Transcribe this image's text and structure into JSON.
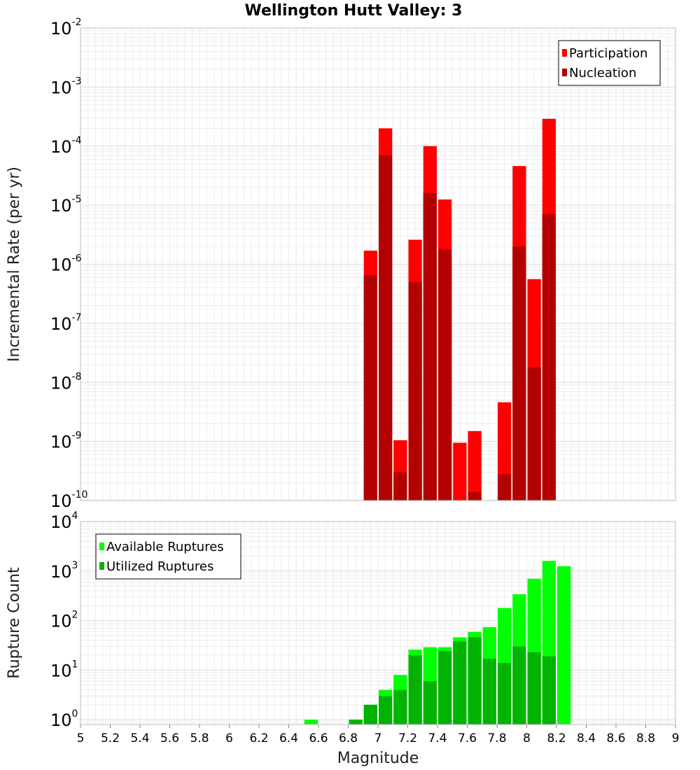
{
  "chart_data": {
    "title": "Wellington Hutt Valley: 3",
    "xlabel": "Magnitude",
    "xlim": [
      5,
      9
    ],
    "x_ticks": [
      "5",
      "5.2",
      "5.4",
      "5.6",
      "5.8",
      "6",
      "6.2",
      "6.4",
      "6.6",
      "6.8",
      "7",
      "7.2",
      "7.4",
      "7.6",
      "7.8",
      "8",
      "8.2",
      "8.4",
      "8.6",
      "8.8",
      "9"
    ],
    "bin_width": 0.1,
    "panels": [
      {
        "type": "bar",
        "ylabel": "Incremental Rate (per yr)",
        "yscale": "log",
        "ylim": [
          1e-10,
          0.01
        ],
        "y_tick_exponents": [
          "-10",
          "-9",
          "-8",
          "-7",
          "-6",
          "-5",
          "-4",
          "-3",
          "-2"
        ],
        "grid": true,
        "legend_position": "top-right",
        "series": [
          {
            "name": "Participation",
            "color": "#ff0000",
            "x": [
              6.95,
              7.05,
              7.15,
              7.25,
              7.35,
              7.45,
              7.55,
              7.65,
              7.85,
              7.95,
              8.05,
              8.15
            ],
            "values": [
              1.7e-06,
              0.0002,
              1.05e-09,
              2.6e-06,
              0.0001,
              1.25e-05,
              9.5e-10,
              1.5e-09,
              4.6e-09,
              4.6e-05,
              5.6e-07,
              0.00029
            ]
          },
          {
            "name": "Nucleation",
            "color": "#b30000",
            "x": [
              6.95,
              7.05,
              7.15,
              7.25,
              7.35,
              7.45,
              7.65,
              7.85,
              7.95,
              8.05,
              8.15
            ],
            "values": [
              6.5e-07,
              7e-05,
              3e-10,
              5e-07,
              1.6e-05,
              1.8e-06,
              1.4e-10,
              2.8e-10,
              2e-06,
              1.8e-08,
              7e-06
            ]
          }
        ]
      },
      {
        "type": "bar",
        "ylabel": "Rupture Count",
        "yscale": "log",
        "ylim": [
          0.8,
          10000
        ],
        "y_tick_exponents": [
          "0",
          "1",
          "2",
          "3",
          "4"
        ],
        "grid": true,
        "legend_position": "top-left",
        "series": [
          {
            "name": "Available Ruptures",
            "color": "#00ff00",
            "x": [
              6.55,
              6.85,
              6.95,
              7.05,
              7.15,
              7.25,
              7.35,
              7.45,
              7.55,
              7.65,
              7.75,
              7.85,
              7.95,
              8.05,
              8.15,
              8.25
            ],
            "values": [
              1,
              1,
              2,
              4,
              8,
              26,
              29,
              29,
              46,
              59,
              74,
              180,
              340,
              700,
              1600,
              1250
            ]
          },
          {
            "name": "Utilized Ruptures",
            "color": "#00b300",
            "x": [
              6.85,
              6.95,
              7.05,
              7.15,
              7.25,
              7.35,
              7.45,
              7.55,
              7.65,
              7.75,
              7.85,
              7.95,
              8.05,
              8.15
            ],
            "values": [
              1,
              2,
              3,
              4,
              20,
              6,
              24,
              38,
              46,
              17,
              14,
              30,
              23,
              19
            ]
          }
        ]
      }
    ]
  }
}
